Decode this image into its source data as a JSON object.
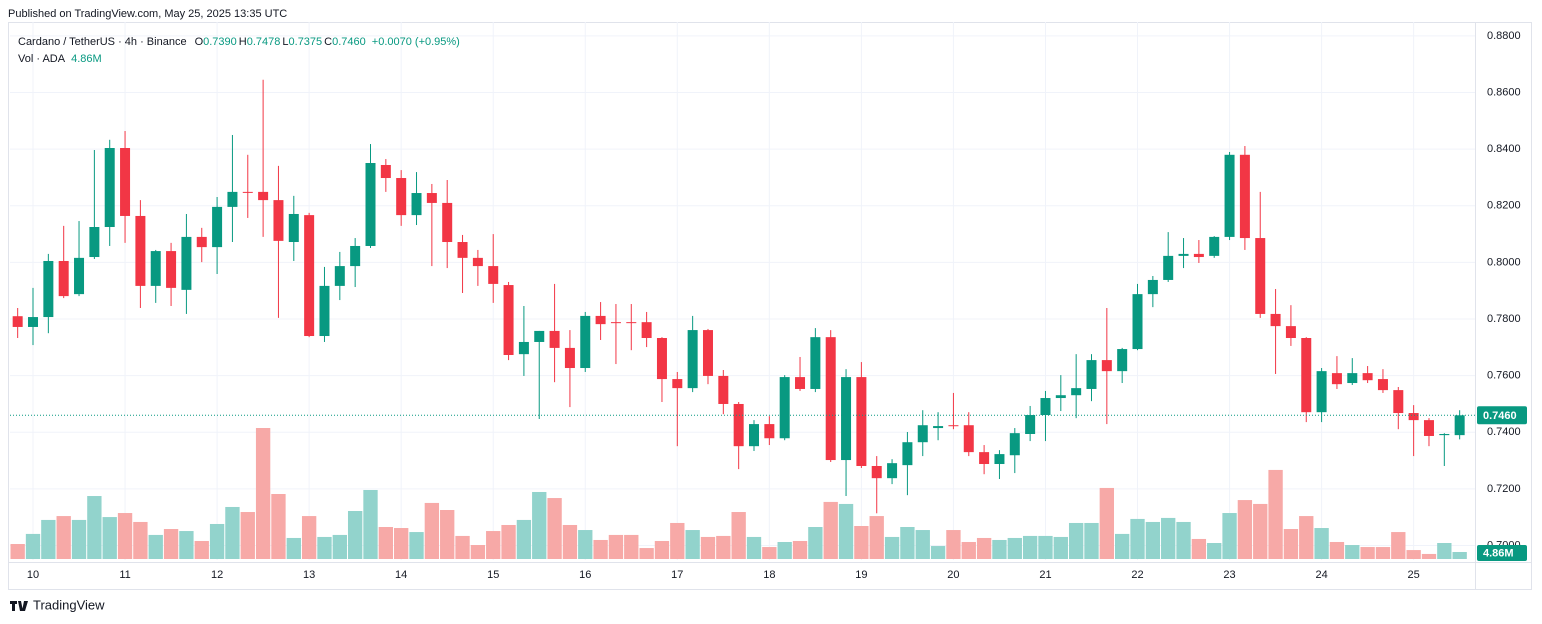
{
  "header": {
    "published": "Published on TradingView.com, May 25, 2025 13:35 UTC",
    "brand": "TradingView"
  },
  "chart_data": {
    "type": "candlestick",
    "legend": {
      "symbol": "Cardano / TetherUS · 4h · Binance",
      "fields": [
        {
          "key": "O",
          "label": "0.7390"
        },
        {
          "key": "H",
          "label": "0.7478"
        },
        {
          "key": "L",
          "label": "0.7375"
        },
        {
          "key": "C",
          "label": "0.7460"
        }
      ],
      "change": "+0.0070 (+0.95%)"
    },
    "categories": [
      null,
      "10",
      null,
      null,
      null,
      null,
      null,
      "11",
      null,
      null,
      null,
      null,
      null,
      "12",
      null,
      null,
      null,
      null,
      null,
      "13",
      null,
      null,
      null,
      null,
      null,
      "14",
      null,
      null,
      null,
      null,
      null,
      "15",
      null,
      null,
      null,
      null,
      null,
      "16",
      null,
      null,
      null,
      null,
      null,
      "17",
      null,
      null,
      null,
      null,
      null,
      "18",
      null,
      null,
      null,
      null,
      null,
      "19",
      null,
      null,
      null,
      null,
      null,
      "20",
      null,
      null,
      null,
      null,
      null,
      "21",
      null,
      null,
      null,
      null,
      null,
      "22",
      null,
      null,
      null,
      null,
      null,
      "23",
      null,
      null,
      null,
      null,
      null,
      "24",
      null,
      null,
      null,
      null,
      null,
      "25",
      null,
      null,
      null
    ],
    "open": [
      0.781,
      0.7772,
      0.7807,
      0.8005,
      0.7888,
      0.8019,
      0.8125,
      0.8404,
      0.8164,
      0.7917,
      0.804,
      0.7903,
      0.809,
      0.8054,
      0.8196,
      0.8249,
      0.8249,
      0.822,
      0.8072,
      0.8167,
      0.774,
      0.7917,
      0.7987,
      0.8058,
      0.8344,
      0.8298,
      0.8167,
      0.8245,
      0.821,
      0.8072,
      0.8016,
      0.7987,
      0.792,
      0.7676,
      0.7719,
      0.7758,
      0.7698,
      0.7627,
      0.7811,
      0.7789,
      0.7789,
      0.7789,
      0.7733,
      0.7588,
      0.7556,
      0.7761,
      0.7599,
      0.75,
      0.7351,
      0.7429,
      0.7379,
      0.7595,
      0.7553,
      0.7736,
      0.7302,
      0.7595,
      0.7281,
      0.7238,
      0.7284,
      0.7365,
      0.7415,
      0.7425,
      0.7425,
      0.733,
      0.7288,
      0.7319,
      0.7394,
      0.7461,
      0.7521,
      0.7531,
      0.7553,
      0.7655,
      0.7616,
      0.7694,
      0.7888,
      0.7938,
      0.8023,
      0.803,
      0.8023,
      0.809,
      0.838,
      0.8086,
      0.7818,
      0.7775,
      0.7733,
      0.7471,
      0.7609,
      0.7574,
      0.7609,
      0.7588,
      0.7549,
      0.7468,
      0.7443,
      0.739,
      0.739
    ],
    "high": [
      0.7839,
      0.791,
      0.803,
      0.8129,
      0.8146,
      0.8397,
      0.8433,
      0.8464,
      0.822,
      0.8044,
      0.8069,
      0.8171,
      0.8122,
      0.8231,
      0.845,
      0.838,
      0.8645,
      0.8341,
      0.8235,
      0.8175,
      0.7984,
      0.8037,
      0.8086,
      0.8418,
      0.8365,
      0.8326,
      0.8319,
      0.8277,
      0.8291,
      0.8097,
      0.8044,
      0.81,
      0.7931,
      0.7846,
      0.7758,
      0.7924,
      0.7761,
      0.7825,
      0.786,
      0.7853,
      0.7853,
      0.7825,
      0.7736,
      0.7613,
      0.7811,
      0.7765,
      0.762,
      0.7507,
      0.7443,
      0.7457,
      0.7602,
      0.7666,
      0.7768,
      0.7761,
      0.7623,
      0.7648,
      0.7316,
      0.7305,
      0.7401,
      0.7478,
      0.7471,
      0.7539,
      0.7471,
      0.7355,
      0.7337,
      0.7415,
      0.7493,
      0.7546,
      0.7602,
      0.7676,
      0.7676,
      0.7839,
      0.7698,
      0.7924,
      0.7952,
      0.8107,
      0.8086,
      0.8079,
      0.8093,
      0.839,
      0.8411,
      0.8249,
      0.7906,
      0.7849,
      0.7736,
      0.7627,
      0.7669,
      0.7662,
      0.7634,
      0.7623,
      0.756,
      0.7496,
      0.745,
      0.7397,
      0.7478
    ],
    "low": [
      0.7733,
      0.7708,
      0.775,
      0.7874,
      0.7881,
      0.8012,
      0.8058,
      0.8069,
      0.7839,
      0.7857,
      0.7846,
      0.7818,
      0.8001,
      0.7959,
      0.8072,
      0.8157,
      0.809,
      0.7804,
      0.8005,
      0.7736,
      0.7719,
      0.7867,
      0.7913,
      0.8051,
      0.8249,
      0.8129,
      0.8132,
      0.7987,
      0.798,
      0.7892,
      0.7917,
      0.7857,
      0.7655,
      0.7599,
      0.7447,
      0.7577,
      0.7489,
      0.7613,
      0.7726,
      0.7641,
      0.769,
      0.7701,
      0.7507,
      0.7351,
      0.7542,
      0.757,
      0.7464,
      0.727,
      0.7334,
      0.7355,
      0.7372,
      0.7546,
      0.7542,
      0.7295,
      0.7175,
      0.7274,
      0.7114,
      0.7217,
      0.7178,
      0.7316,
      0.7372,
      0.7411,
      0.7316,
      0.7252,
      0.7235,
      0.7256,
      0.7369,
      0.7369,
      0.7475,
      0.745,
      0.751,
      0.7429,
      0.7574,
      0.769,
      0.7842,
      0.7931,
      0.798,
      0.7998,
      0.8016,
      0.8079,
      0.8044,
      0.7804,
      0.7606,
      0.7705,
      0.7436,
      0.7436,
      0.7553,
      0.7567,
      0.7574,
      0.7539,
      0.7411,
      0.7316,
      0.7351,
      0.7281,
      0.7375
    ],
    "close": [
      0.7772,
      0.7807,
      0.8005,
      0.7881,
      0.8016,
      0.8125,
      0.8404,
      0.8164,
      0.7917,
      0.804,
      0.791,
      0.809,
      0.8054,
      0.8196,
      0.8249,
      0.8246,
      0.822,
      0.8076,
      0.8171,
      0.774,
      0.7917,
      0.7987,
      0.8058,
      0.8351,
      0.8298,
      0.8167,
      0.8245,
      0.821,
      0.8072,
      0.8016,
      0.7987,
      0.7924,
      0.7673,
      0.7719,
      0.7758,
      0.7698,
      0.7627,
      0.7811,
      0.7782,
      0.7786,
      0.7786,
      0.7733,
      0.7588,
      0.7556,
      0.7761,
      0.7599,
      0.75,
      0.7351,
      0.7429,
      0.7379,
      0.7595,
      0.7553,
      0.7736,
      0.7302,
      0.7595,
      0.7281,
      0.7238,
      0.7291,
      0.7365,
      0.7425,
      0.7422,
      0.7422,
      0.733,
      0.7288,
      0.7323,
      0.7397,
      0.7461,
      0.7521,
      0.7531,
      0.7556,
      0.7655,
      0.7616,
      0.7694,
      0.7888,
      0.7938,
      0.8023,
      0.803,
      0.8019,
      0.809,
      0.838,
      0.8086,
      0.7818,
      0.7775,
      0.7733,
      0.7471,
      0.7616,
      0.757,
      0.7609,
      0.7584,
      0.7549,
      0.7468,
      0.7443,
      0.7387,
      0.7394,
      0.746
    ],
    "volume": {
      "name": "Vol · ADA",
      "values": [
        10.4,
        17.4,
        27.1,
        29.8,
        27.1,
        43.7,
        29.1,
        31.9,
        25.7,
        16.7,
        20.8,
        19.4,
        12.5,
        24.3,
        36.1,
        32.6,
        90.9,
        45.1,
        14.6,
        29.8,
        15.3,
        16.7,
        33.3,
        47.9,
        22.2,
        21.5,
        18.7,
        38.9,
        34.0,
        16.0,
        9.7,
        19.4,
        23.6,
        27.1,
        46.5,
        42.3,
        23.6,
        20.1,
        13.2,
        16.7,
        16.7,
        7.6,
        12.5,
        25.0,
        20.1,
        15.3,
        16.0,
        32.6,
        15.3,
        8.3,
        11.8,
        12.5,
        22.2,
        39.6,
        38.2,
        22.9,
        29.8,
        15.3,
        22.2,
        20.1,
        9.0,
        20.1,
        11.8,
        14.6,
        13.2,
        14.6,
        16.0,
        16.0,
        15.3,
        25.0,
        25.0,
        49.3,
        17.4,
        27.8,
        25.7,
        28.5,
        25.7,
        13.9,
        11.1,
        31.9,
        40.9,
        38.2,
        61.8,
        20.8,
        29.8,
        21.5,
        11.8,
        9.7,
        8.3,
        8.3,
        18.7,
        6.2,
        3.5,
        11.1,
        4.86
      ],
      "value_labels": [
        null,
        null,
        null,
        null,
        null,
        null,
        null,
        null,
        null,
        null,
        null,
        null,
        null,
        null,
        null,
        null,
        null,
        null,
        null,
        null,
        null,
        null,
        null,
        null,
        null,
        null,
        null,
        null,
        null,
        null,
        null,
        null,
        null,
        null,
        null,
        null,
        null,
        null,
        null,
        null,
        null,
        null,
        null,
        null,
        null,
        null,
        null,
        null,
        null,
        null,
        null,
        null,
        null,
        null,
        null,
        null,
        null,
        null,
        null,
        null,
        null,
        null,
        null,
        null,
        null,
        null,
        null,
        null,
        null,
        null,
        null,
        null,
        null,
        null,
        null,
        null,
        null,
        null,
        null,
        null,
        null,
        null,
        null,
        null,
        null,
        null,
        null,
        null,
        null,
        null,
        null,
        null,
        null,
        null,
        "4.86M"
      ],
      "up_color": "#92d3cc",
      "down_color": "#f7a9a7"
    },
    "up_color": "#089981",
    "down_color": "#f23645",
    "ylim": [
      0.6949,
      0.8849
    ],
    "yticks": [
      {
        "value": 0.7,
        "label": "0.7000"
      },
      {
        "value": 0.72,
        "label": "0.7200"
      },
      {
        "value": 0.74,
        "label": "0.7400"
      },
      {
        "value": 0.76,
        "label": "0.7600"
      },
      {
        "value": 0.78,
        "label": "0.7800"
      },
      {
        "value": 0.8,
        "label": "0.8000"
      },
      {
        "value": 0.82,
        "label": "0.8200"
      },
      {
        "value": 0.84,
        "label": "0.8400"
      },
      {
        "value": 0.86,
        "label": "0.8600"
      },
      {
        "value": 0.88,
        "label": "0.8800"
      }
    ],
    "grid": true
  }
}
